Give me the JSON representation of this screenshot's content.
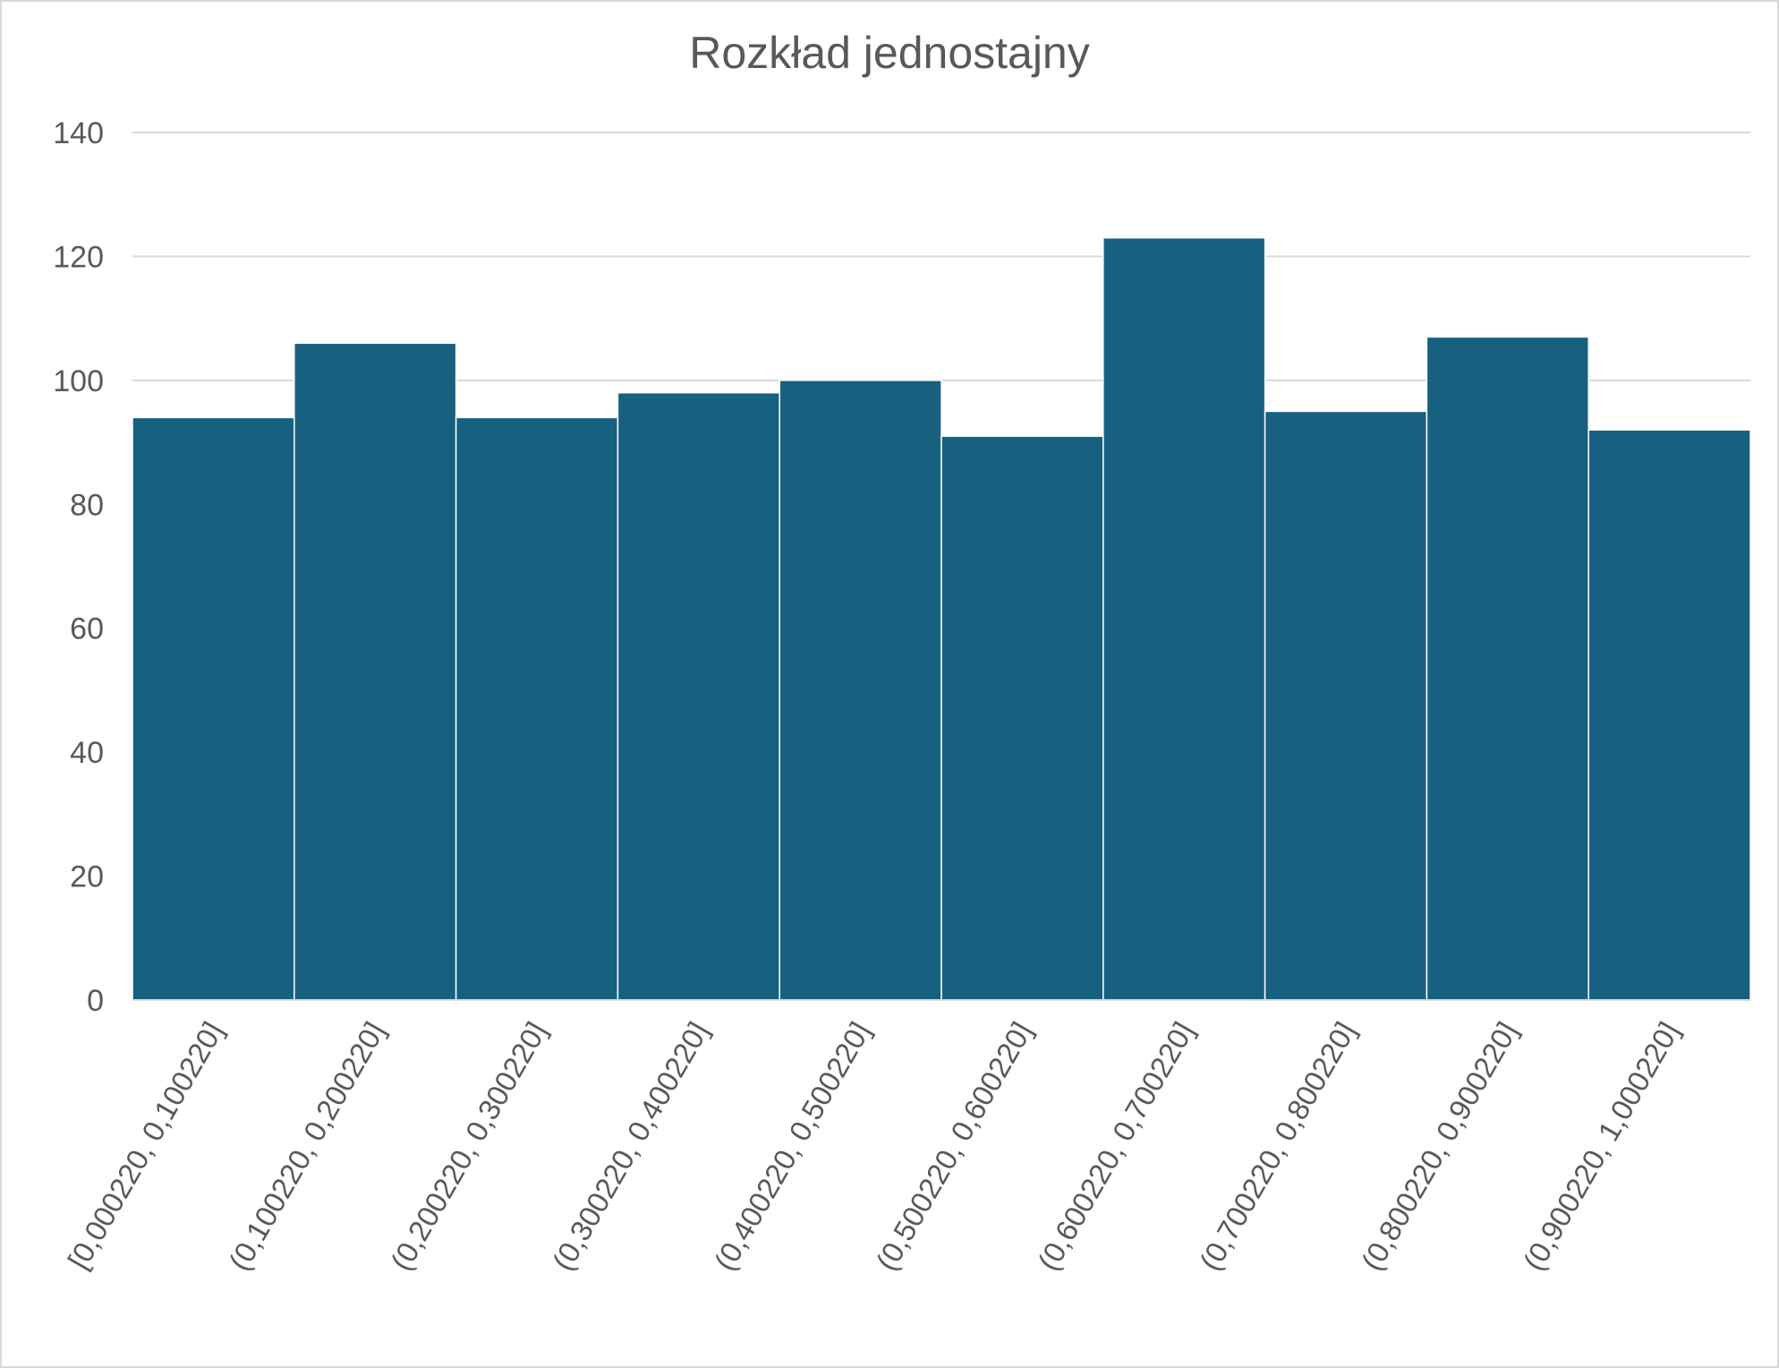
{
  "chart_data": {
    "type": "bar",
    "title": "Rozkład jednostajny",
    "xlabel": "",
    "ylabel": "",
    "categories": [
      "[0,000220, 0,100220]",
      "(0,100220, 0,200220]",
      "(0,200220, 0,300220]",
      "(0,300220, 0,400220]",
      "(0,400220, 0,500220]",
      "(0,500220, 0,600220]",
      "(0,600220, 0,700220]",
      "(0,700220, 0,800220]",
      "(0,800220, 0,900220]",
      "(0,900220, 1,000220]"
    ],
    "values": [
      94,
      106,
      94,
      98,
      100,
      91,
      123,
      95,
      107,
      92
    ],
    "ylim": [
      0,
      140
    ],
    "yticks": [
      "0",
      "20",
      "40",
      "60",
      "80",
      "100",
      "120",
      "140"
    ],
    "grid": true,
    "legend": "none",
    "colors": {
      "bar": "#17607f",
      "grid": "#d9d9d9",
      "text": "#595959"
    }
  }
}
